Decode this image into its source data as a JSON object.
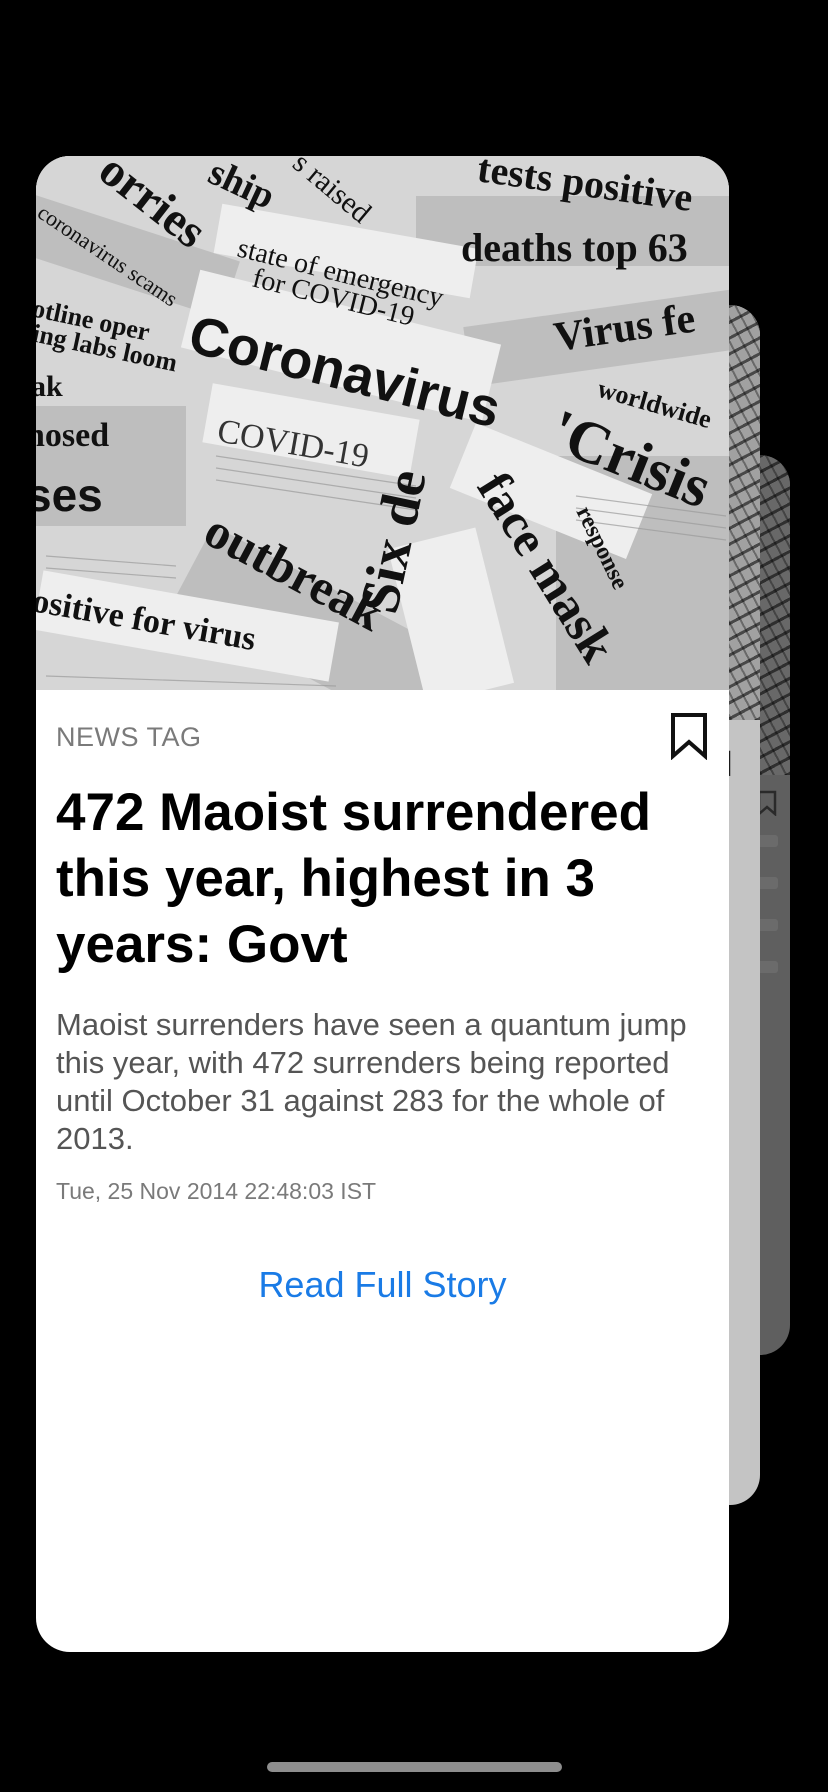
{
  "card": {
    "tag": "NEWS TAG",
    "headline": "472 Maoist surrendered this year, highest in 3 years: Govt",
    "summary": "Maoist surrenders have seen a quantum jump this year, with 472 surrenders being reported until October 31 against 283 for the whole of 2013.",
    "timestamp": "Tue, 25 Nov 2014 22:48:03 IST",
    "read_more": "Read Full Story",
    "bookmark_icon": "bookmark-outline-icon"
  },
  "hero_image": {
    "headlines": {
      "h1": "tests positive",
      "h2": "orries",
      "h3": "ship",
      "h4": "s raised",
      "h5": "deaths top 63",
      "h6": "state of emergency",
      "h7": "for COVID-19",
      "h8": "Virus fe",
      "h9": "Coronavirus",
      "h10": "worldwide",
      "h11": "COVID-19",
      "h12": "'Crisis",
      "h13": "face mask",
      "h14": "response",
      "h15": "nosed",
      "h16": "ses",
      "h17": "outbreak",
      "h18": "Six de",
      "h19": "ositive for virus",
      "h20": "ing labs loom",
      "h21": "otline oper",
      "h22": "coronavirus scams",
      "h23": "ak"
    }
  },
  "colors": {
    "background": "#000000",
    "card": "#ffffff",
    "link": "#1a7be6",
    "meta_text": "#7a7a7a"
  }
}
